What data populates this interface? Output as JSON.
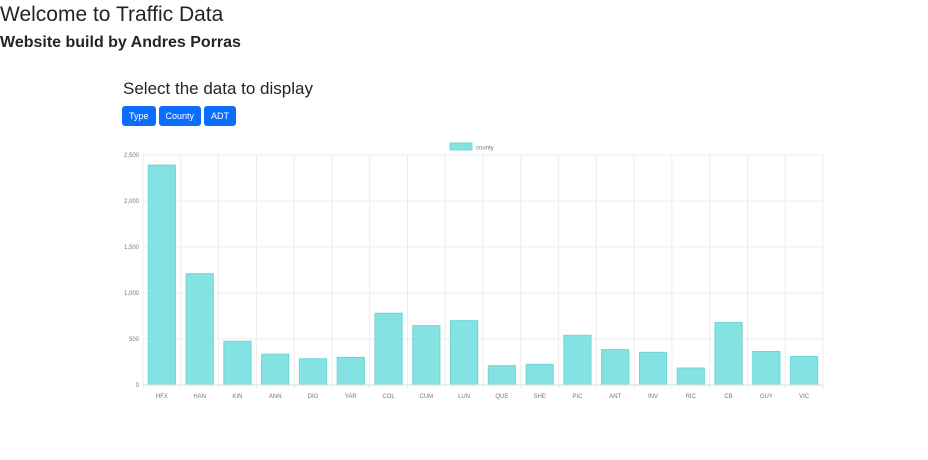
{
  "header": {
    "title": "Welcome to Traffic Data",
    "subtitle": "Website build by Andres Porras"
  },
  "controls": {
    "heading": "Select the data to display",
    "buttons": [
      "Type",
      "County",
      "ADT"
    ]
  },
  "colors": {
    "primary": "#0d6efd",
    "bar_fill": "#84e2e2",
    "bar_stroke": "#6fd6d6",
    "grid": "#ececec",
    "axis_text": "#777777"
  },
  "chart_data": {
    "type": "bar",
    "legend_position": "top-center",
    "grid": true,
    "series": [
      {
        "name": "county",
        "values": [
          2390,
          1210,
          475,
          335,
          285,
          300,
          780,
          645,
          700,
          210,
          225,
          540,
          385,
          355,
          185,
          680,
          365,
          310
        ]
      }
    ],
    "categories": [
      "HFX",
      "HAN",
      "KIN",
      "ANN",
      "DIG",
      "YAR",
      "COL",
      "CUM",
      "LUN",
      "QUE",
      "SHE",
      "PIC",
      "ANT",
      "INV",
      "RIC",
      "CB",
      "GUY",
      "VIC"
    ],
    "ylim": [
      0,
      2500
    ],
    "yticks": [
      "0",
      "500",
      "1,000",
      "1,500",
      "2,000",
      "2,500"
    ],
    "ytick_values": [
      0,
      500,
      1000,
      1500,
      2000,
      2500
    ]
  }
}
